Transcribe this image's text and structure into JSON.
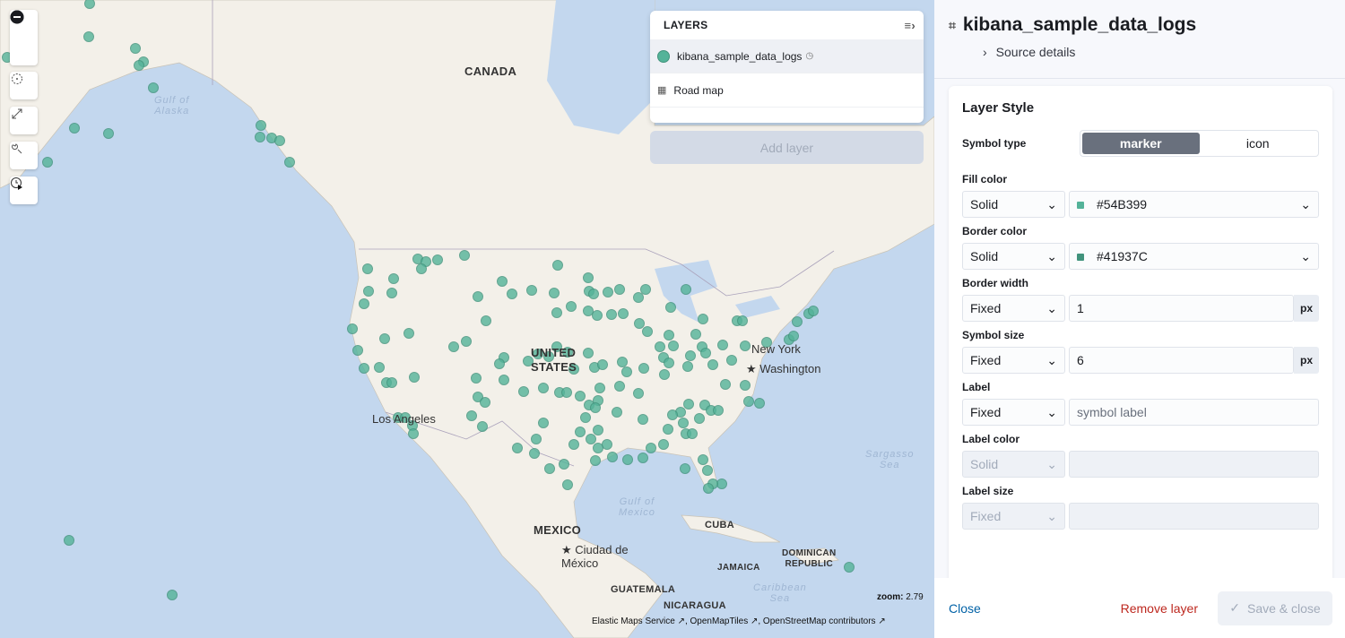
{
  "map": {
    "labels": {
      "canada": "CANADA",
      "us": "UNITED\nSTATES",
      "mexico": "MEXICO",
      "cuba": "CUBA",
      "jamaica": "JAMAICA",
      "dominican": "DOMINICAN\nREPUBLIC",
      "guatemala": "GUATEMALA",
      "nicaragua": "NICARAGUA"
    },
    "cities": {
      "newyork": "New York",
      "washington": "Washington",
      "losangeles": "Los Angeles",
      "mexicocity": "Ciudad de\nMéxico"
    },
    "seas": {
      "alaska": "Gulf of\nAlaska",
      "mexico": "Gulf of\nMexico",
      "caribbean": "Caribbean\nSea",
      "sargasso": "Sargasso\nSea"
    },
    "zoom_label": "zoom:",
    "zoom_value": "2.79",
    "attribution": [
      "Elastic Maps Service",
      "OpenMapTiles",
      "OpenStreetMap contributors"
    ],
    "marker_color": "#54B399",
    "marker_border": "#41937C",
    "controls": [
      "zoom-in-icon",
      "zoom-out-icon",
      "crosshair-icon",
      "fit-bounds-icon",
      "tools-icon",
      "timeslider-icon"
    ]
  },
  "layers": {
    "title": "LAYERS",
    "items": [
      {
        "name": "kibana_sample_data_logs",
        "icon": "circle-swatch",
        "time": "clock-icon",
        "selected": true
      },
      {
        "name": "Road map",
        "icon": "grid-icon"
      }
    ],
    "add_label": "Add layer"
  },
  "panel": {
    "title": "kibana_sample_data_logs",
    "source_details": "Source details",
    "style_title": "Layer Style",
    "symbol_type": {
      "label": "Symbol type",
      "options": [
        "marker",
        "icon"
      ],
      "selected": "marker"
    },
    "fill_color": {
      "label": "Fill color",
      "mode": "Solid",
      "value": "#54B399"
    },
    "border_color": {
      "label": "Border color",
      "mode": "Solid",
      "value": "#41937C"
    },
    "border_width": {
      "label": "Border width",
      "mode": "Fixed",
      "value": "1",
      "unit": "px"
    },
    "symbol_size": {
      "label": "Symbol size",
      "mode": "Fixed",
      "value": "6",
      "unit": "px"
    },
    "label": {
      "label": "Label",
      "mode": "Fixed",
      "placeholder": "symbol label"
    },
    "label_color": {
      "label": "Label color",
      "mode": "Solid"
    },
    "label_size": {
      "label": "Label size",
      "mode": "Fixed"
    },
    "close": "Close",
    "remove": "Remove layer",
    "save": "Save & close"
  }
}
